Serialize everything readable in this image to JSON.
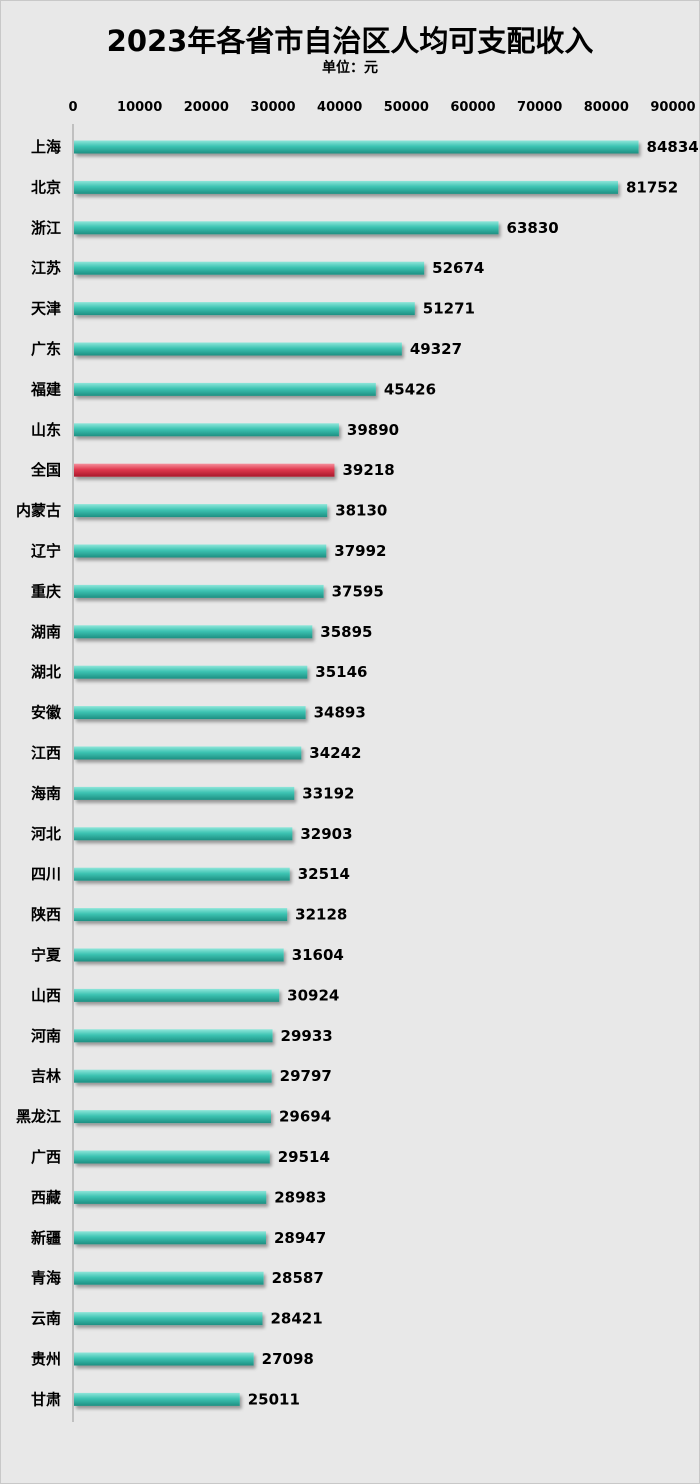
{
  "title": "2023年各省市自治区人均可支配收入",
  "unit_label": "单位：元",
  "colors": {
    "bar": "#3cc3b2",
    "highlight": "#e0394e",
    "background": "#e8e8e8"
  },
  "chart_data": {
    "type": "bar",
    "orientation": "horizontal",
    "title": "2023年各省市自治区人均可支配收入",
    "unit": "单位：元",
    "xlim": [
      0,
      90000
    ],
    "xticks": [
      0,
      10000,
      20000,
      30000,
      40000,
      50000,
      60000,
      70000,
      80000,
      90000
    ],
    "axis_position": "top",
    "grid": false,
    "highlight_category": "全国",
    "categories": [
      "上海",
      "北京",
      "浙江",
      "江苏",
      "天津",
      "广东",
      "福建",
      "山东",
      "全国",
      "内蒙古",
      "辽宁",
      "重庆",
      "湖南",
      "湖北",
      "安徽",
      "江西",
      "海南",
      "河北",
      "四川",
      "陕西",
      "宁夏",
      "山西",
      "河南",
      "吉林",
      "黑龙江",
      "广西",
      "西藏",
      "新疆",
      "青海",
      "云南",
      "贵州",
      "甘肃"
    ],
    "values": [
      84834,
      81752,
      63830,
      52674,
      51271,
      49327,
      45426,
      39890,
      39218,
      38130,
      37992,
      37595,
      35895,
      35146,
      34893,
      34242,
      33192,
      32903,
      32514,
      32128,
      31604,
      30924,
      29933,
      29797,
      29694,
      29514,
      28983,
      28947,
      28587,
      28421,
      27098,
      25011
    ]
  }
}
